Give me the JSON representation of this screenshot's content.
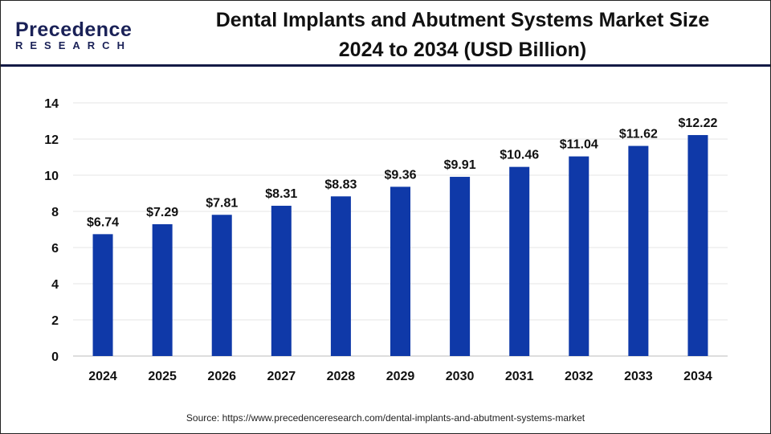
{
  "logo": {
    "line1": "Precedence",
    "line2": "RESEARCH"
  },
  "title_lines": [
    "Dental Implants and Abutment Systems Market Size",
    "2024 to 2034 (USD Billion)"
  ],
  "source": "Source: https://www.precedenceresearch.com/dental-implants-and-abutment-systems-market",
  "chart_data": {
    "type": "bar",
    "title": "Dental Implants and Abutment Systems Market Size 2024 to 2034 (USD Billion)",
    "categories": [
      "2024",
      "2025",
      "2026",
      "2027",
      "2028",
      "2029",
      "2030",
      "2031",
      "2032",
      "2033",
      "2034"
    ],
    "values": [
      6.74,
      7.29,
      7.81,
      8.31,
      8.83,
      9.36,
      9.91,
      10.46,
      11.04,
      11.62,
      12.22
    ],
    "data_labels": [
      "$6.74",
      "$7.29",
      "$7.81",
      "$8.31",
      "$8.83",
      "$9.36",
      "$9.91",
      "$10.46",
      "$11.04",
      "$11.62",
      "$12.22"
    ],
    "ylim": [
      0,
      14
    ],
    "yticks": [
      0,
      2,
      4,
      6,
      8,
      10,
      12,
      14
    ],
    "grid": true,
    "bar_color": "#0f39a8",
    "xlabel": "",
    "ylabel": ""
  }
}
